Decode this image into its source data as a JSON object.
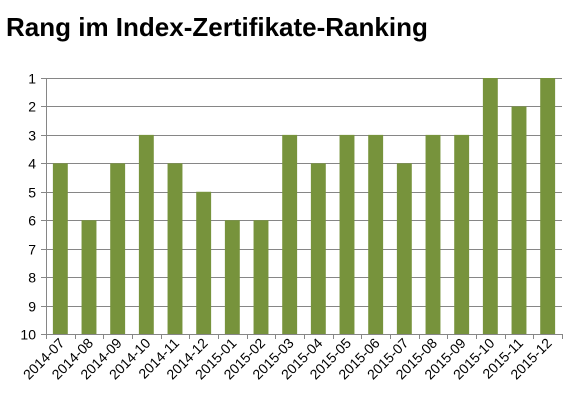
{
  "chart_data": {
    "type": "bar",
    "title": "Rang im Index-Zertifikate-Ranking",
    "xlabel": "",
    "ylabel": "",
    "categories": [
      "2014-07",
      "2014-08",
      "2014-09",
      "2014-10",
      "2014-11",
      "2014-12",
      "2015-01",
      "2015-02",
      "2015-03",
      "2015-04",
      "2015-05",
      "2015-06",
      "2015-07",
      "2015-08",
      "2015-09",
      "2015-10",
      "2015-11",
      "2015-12"
    ],
    "values": [
      4,
      6,
      4,
      3,
      4,
      5,
      6,
      6,
      3,
      4,
      3,
      3,
      4,
      3,
      3,
      1,
      2,
      1
    ],
    "ylim": [
      1,
      10
    ],
    "y_axis_inverted": true,
    "y_ticks": [
      1,
      2,
      3,
      4,
      5,
      6,
      7,
      8,
      9,
      10
    ],
    "grid": true,
    "legend": "none",
    "bar_color": "#77933c",
    "grid_color": "#868686"
  }
}
